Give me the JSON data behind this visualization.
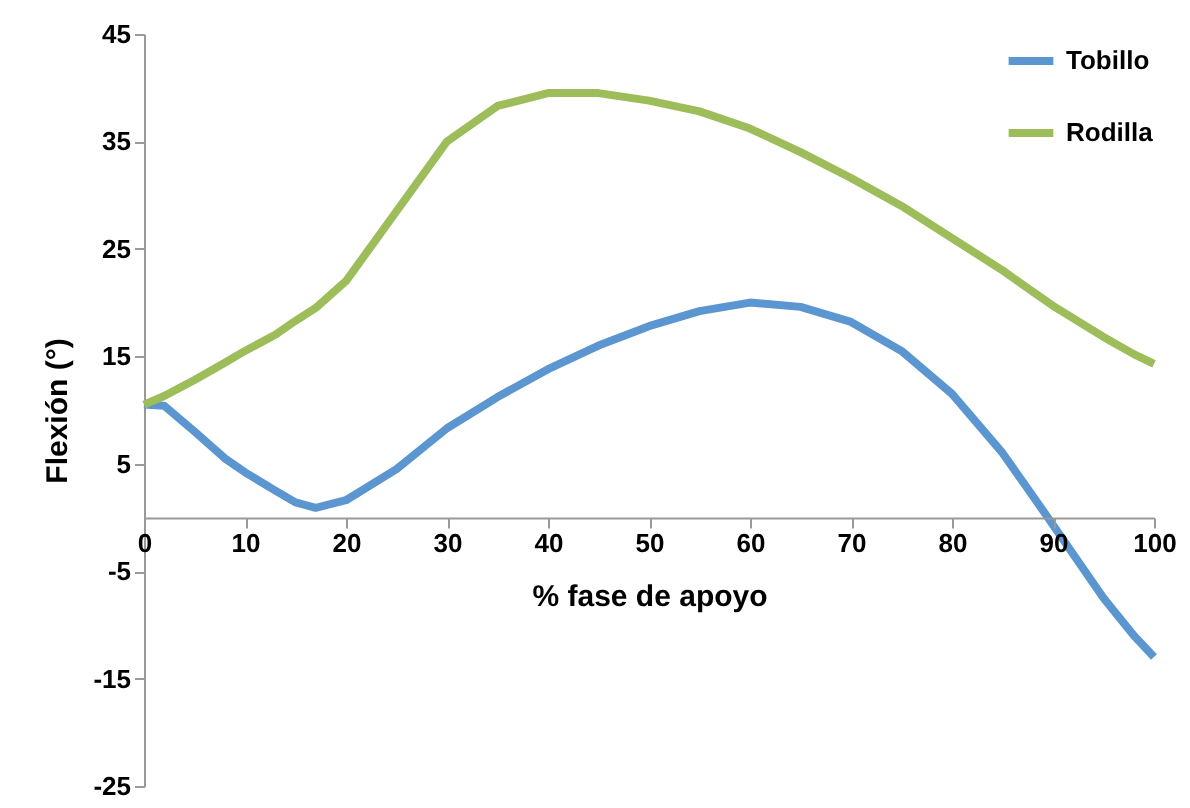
{
  "chart_data": {
    "type": "line",
    "xlabel": "% fase de apoyo",
    "ylabel": "Flexión (°)",
    "x": [
      0,
      2,
      5,
      8,
      10,
      13,
      15,
      17,
      20,
      25,
      30,
      35,
      40,
      45,
      50,
      55,
      60,
      65,
      70,
      75,
      80,
      85,
      88,
      90,
      95,
      98,
      100
    ],
    "series": [
      {
        "name": "Tobillo",
        "color": "#5b96d0",
        "values": [
          10.5,
          10.4,
          8,
          5.5,
          4.2,
          2.5,
          1.4,
          0.9,
          1.6,
          4.5,
          8.3,
          11.2,
          13.8,
          16,
          17.8,
          19.2,
          20,
          19.6,
          18.2,
          15.5,
          11.5,
          6,
          2,
          -0.7,
          -7.5,
          -11,
          -13
        ]
      },
      {
        "name": "Rodilla",
        "color": "#9dbd5a",
        "values": [
          10.5,
          11.3,
          12.8,
          14.4,
          15.5,
          17,
          18.3,
          19.5,
          22,
          28.5,
          35,
          38.3,
          39.5,
          39.5,
          38.8,
          37.8,
          36.2,
          34,
          31.6,
          29,
          26,
          23,
          21,
          19.7,
          16.8,
          15.2,
          14.3
        ]
      }
    ],
    "xlim": [
      0,
      100
    ],
    "xticks": [
      0,
      10,
      20,
      30,
      40,
      50,
      60,
      70,
      80,
      90,
      100
    ],
    "ylim": [
      -25,
      45
    ],
    "yticks": [
      -25,
      -15,
      -5,
      5,
      15,
      25,
      35,
      45
    ],
    "grid": false,
    "legend": "top right",
    "marker": "none",
    "line_style": "solid"
  }
}
